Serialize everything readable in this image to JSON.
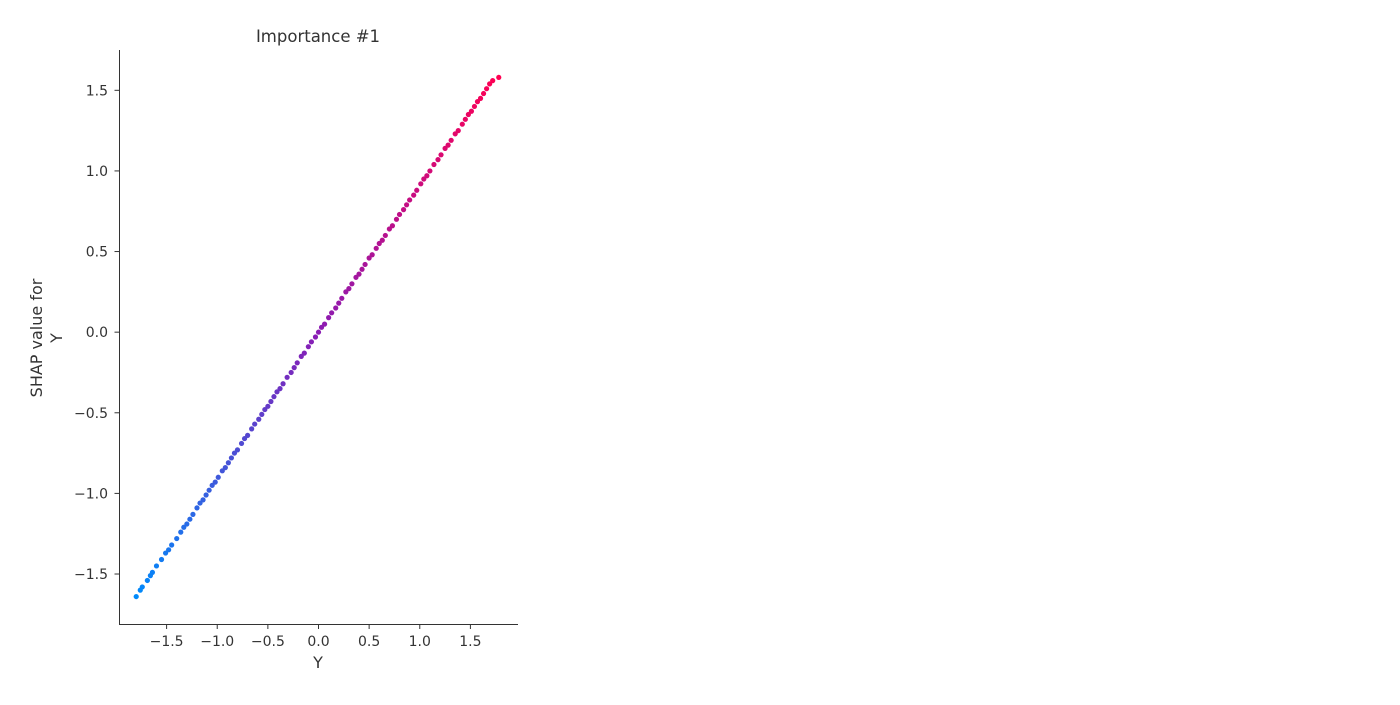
{
  "chart_data": {
    "type": "scatter",
    "title": "Importance #1",
    "xlabel": "Y",
    "ylabel": "SHAP value for\nY",
    "xlim": [
      -1.97,
      1.97
    ],
    "ylim": [
      -1.81,
      1.75
    ],
    "xticks": [
      -1.5,
      -1.0,
      -0.5,
      0.0,
      0.5,
      1.0,
      1.5
    ],
    "yticks": [
      -1.5,
      -1.0,
      -0.5,
      0.0,
      0.5,
      1.0,
      1.5
    ],
    "xtick_labels": [
      "−1.5",
      "−1.0",
      "−0.5",
      "0.0",
      "0.5",
      "1.0",
      "1.5"
    ],
    "ytick_labels": [
      "−1.5",
      "−1.0",
      "−0.5",
      "0.0",
      "0.5",
      "1.0",
      "1.5"
    ],
    "grid": false,
    "color_low": "#008afb",
    "color_mid": "#8a1cb4",
    "color_high": "#ff0052",
    "series": [
      {
        "x": [
          -1.8,
          -1.76,
          -1.74,
          -1.69,
          -1.66,
          -1.64,
          -1.6,
          -1.55,
          -1.51,
          -1.48,
          -1.45,
          -1.4,
          -1.36,
          -1.33,
          -1.3,
          -1.27,
          -1.24,
          -1.2,
          -1.17,
          -1.14,
          -1.11,
          -1.08,
          -1.05,
          -1.02,
          -0.99,
          -0.95,
          -0.92,
          -0.89,
          -0.86,
          -0.83,
          -0.8,
          -0.76,
          -0.73,
          -0.7,
          -0.66,
          -0.63,
          -0.59,
          -0.56,
          -0.53,
          -0.5,
          -0.47,
          -0.44,
          -0.41,
          -0.38,
          -0.35,
          -0.31,
          -0.27,
          -0.24,
          -0.21,
          -0.17,
          -0.14,
          -0.1,
          -0.07,
          -0.03,
          0.0,
          0.03,
          0.06,
          0.1,
          0.13,
          0.17,
          0.2,
          0.23,
          0.27,
          0.3,
          0.33,
          0.37,
          0.4,
          0.43,
          0.46,
          0.5,
          0.53,
          0.57,
          0.6,
          0.63,
          0.66,
          0.7,
          0.73,
          0.77,
          0.8,
          0.84,
          0.87,
          0.9,
          0.94,
          0.97,
          1.01,
          1.04,
          1.07,
          1.1,
          1.14,
          1.18,
          1.21,
          1.25,
          1.28,
          1.31,
          1.35,
          1.38,
          1.42,
          1.45,
          1.48,
          1.51,
          1.54,
          1.57,
          1.6,
          1.63,
          1.66,
          1.69,
          1.72,
          1.78
        ],
        "y": [
          -1.64,
          -1.6,
          -1.58,
          -1.54,
          -1.51,
          -1.49,
          -1.45,
          -1.41,
          -1.37,
          -1.35,
          -1.32,
          -1.28,
          -1.24,
          -1.21,
          -1.19,
          -1.16,
          -1.13,
          -1.09,
          -1.06,
          -1.04,
          -1.01,
          -0.98,
          -0.95,
          -0.93,
          -0.9,
          -0.86,
          -0.84,
          -0.81,
          -0.78,
          -0.75,
          -0.73,
          -0.69,
          -0.66,
          -0.64,
          -0.6,
          -0.57,
          -0.54,
          -0.51,
          -0.48,
          -0.46,
          -0.43,
          -0.4,
          -0.37,
          -0.35,
          -0.32,
          -0.28,
          -0.25,
          -0.22,
          -0.19,
          -0.15,
          -0.13,
          -0.09,
          -0.06,
          -0.03,
          0.0,
          0.03,
          0.05,
          0.09,
          0.12,
          0.15,
          0.18,
          0.21,
          0.25,
          0.27,
          0.3,
          0.34,
          0.36,
          0.39,
          0.42,
          0.46,
          0.48,
          0.52,
          0.55,
          0.57,
          0.6,
          0.64,
          0.66,
          0.7,
          0.73,
          0.76,
          0.79,
          0.82,
          0.85,
          0.88,
          0.92,
          0.95,
          0.97,
          1.0,
          1.04,
          1.07,
          1.1,
          1.14,
          1.16,
          1.19,
          1.23,
          1.25,
          1.29,
          1.32,
          1.35,
          1.37,
          1.4,
          1.43,
          1.45,
          1.48,
          1.51,
          1.54,
          1.56,
          1.58
        ]
      }
    ]
  }
}
